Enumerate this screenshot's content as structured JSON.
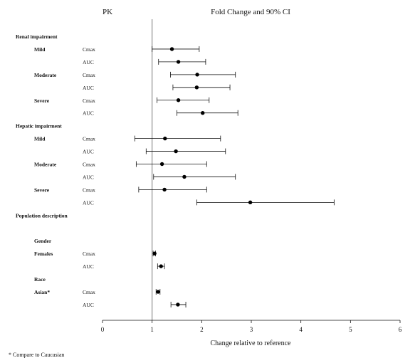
{
  "chart_data": {
    "type": "forest",
    "headers": {
      "left": "PK",
      "right": "Fold Change and 90% CI"
    },
    "xlabel": "Change relative to reference",
    "xlim": [
      0,
      6
    ],
    "xticks": [
      0,
      1,
      2,
      3,
      4,
      5,
      6
    ],
    "reference_line": 1,
    "footnote": "* Compare to Caucasian",
    "rows": [
      {
        "type": "group",
        "label": "Renal impairment"
      },
      {
        "type": "point",
        "subgroup": "Mild",
        "param": "Cmax",
        "est": 1.4,
        "lo": 1.0,
        "hi": 1.95
      },
      {
        "type": "point",
        "subgroup": "",
        "param": "AUC",
        "est": 1.53,
        "lo": 1.13,
        "hi": 2.08
      },
      {
        "type": "point",
        "subgroup": "Moderate",
        "param": "Cmax",
        "est": 1.91,
        "lo": 1.37,
        "hi": 2.68
      },
      {
        "type": "point",
        "subgroup": "",
        "param": "AUC",
        "est": 1.9,
        "lo": 1.42,
        "hi": 2.57
      },
      {
        "type": "point",
        "subgroup": "Severe",
        "param": "Cmax",
        "est": 1.53,
        "lo": 1.1,
        "hi": 2.15
      },
      {
        "type": "point",
        "subgroup": "",
        "param": "AUC",
        "est": 2.02,
        "lo": 1.5,
        "hi": 2.73
      },
      {
        "type": "group",
        "label": "Hepatic impairment"
      },
      {
        "type": "point",
        "subgroup": "Mild",
        "param": "Cmax",
        "est": 1.26,
        "lo": 0.65,
        "hi": 2.38
      },
      {
        "type": "point",
        "subgroup": "",
        "param": "AUC",
        "est": 1.48,
        "lo": 0.88,
        "hi": 2.48
      },
      {
        "type": "point",
        "subgroup": "Moderate",
        "param": "Cmax",
        "est": 1.2,
        "lo": 0.68,
        "hi": 2.1
      },
      {
        "type": "point",
        "subgroup": "",
        "param": "AUC",
        "est": 1.65,
        "lo": 1.03,
        "hi": 2.68
      },
      {
        "type": "point",
        "subgroup": "Severe",
        "param": "Cmax",
        "est": 1.25,
        "lo": 0.73,
        "hi": 2.1
      },
      {
        "type": "point",
        "subgroup": "",
        "param": "AUC",
        "est": 2.98,
        "lo": 1.9,
        "hi": 4.67
      },
      {
        "type": "group",
        "label": "Population description"
      },
      {
        "type": "spacer"
      },
      {
        "type": "subgroup",
        "label": "Gender"
      },
      {
        "type": "point",
        "subgroup": "Females",
        "param": "Cmax",
        "est": 1.05,
        "lo": 1.02,
        "hi": 1.07
      },
      {
        "type": "point",
        "subgroup": "",
        "param": "AUC",
        "est": 1.18,
        "lo": 1.11,
        "hi": 1.25
      },
      {
        "type": "subgroup",
        "label": "Race"
      },
      {
        "type": "point",
        "subgroup": "Asian*",
        "param": "Cmax",
        "est": 1.12,
        "lo": 1.08,
        "hi": 1.16
      },
      {
        "type": "point",
        "subgroup": "",
        "param": "AUC",
        "est": 1.52,
        "lo": 1.38,
        "hi": 1.68
      }
    ]
  }
}
